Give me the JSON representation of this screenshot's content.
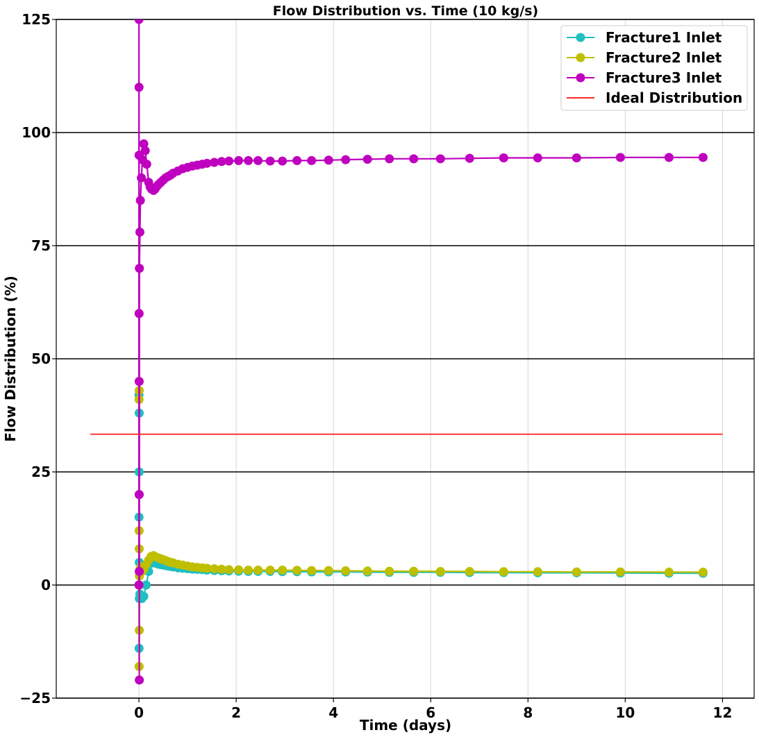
{
  "chart_data": {
    "type": "line",
    "title": "Flow Distribution vs. Time (10 kg/s)",
    "xlabel": "Time (days)",
    "ylabel": "Flow Distribution (%)",
    "xlim": [
      -1.7,
      12.65
    ],
    "ylim": [
      -25,
      125
    ],
    "xticks": [
      0,
      2,
      4,
      6,
      8,
      10,
      12
    ],
    "yticks": [
      -25,
      0,
      25,
      50,
      75,
      100,
      125
    ],
    "xtick_labels": [
      "0",
      "2",
      "4",
      "6",
      "8",
      "10",
      "12"
    ],
    "ytick_labels": [
      "−25",
      "0",
      "25",
      "50",
      "75",
      "100",
      "125"
    ],
    "grid": {
      "x": "light",
      "y": "dark"
    },
    "legend_position": "top-right",
    "series": [
      {
        "name": "Fracture1 Inlet",
        "color": "#1fbfbf",
        "marker": "circle",
        "x": [
          0,
          0.001,
          0.002,
          0.003,
          0.004,
          0.005,
          0.006,
          0.007,
          0.008,
          0.01,
          0.02,
          0.04,
          0.06,
          0.1,
          0.15,
          0.2,
          0.25,
          0.3,
          0.35,
          0.4,
          0.45,
          0.5,
          0.55,
          0.6,
          0.65,
          0.7,
          0.8,
          0.9,
          1.0,
          1.1,
          1.2,
          1.3,
          1.4,
          1.55,
          1.7,
          1.85,
          2.05,
          2.25,
          2.45,
          2.7,
          2.95,
          3.25,
          3.55,
          3.9,
          4.25,
          4.7,
          5.15,
          5.65,
          6.2,
          6.8,
          7.5,
          8.2,
          9.0,
          9.9,
          10.9,
          11.6
        ],
        "y": [
          0,
          42,
          15,
          -14,
          20,
          25,
          38,
          5,
          -3,
          0,
          -2,
          -3,
          -3,
          -2.5,
          0,
          3,
          4.8,
          5,
          4.8,
          4.6,
          4.5,
          4.4,
          4.3,
          4.2,
          4.1,
          4.0,
          3.8,
          3.7,
          3.6,
          3.5,
          3.45,
          3.4,
          3.3,
          3.2,
          3.15,
          3.1,
          3.05,
          3.0,
          3.0,
          3.0,
          2.95,
          2.95,
          2.9,
          2.9,
          2.9,
          2.85,
          2.8,
          2.8,
          2.8,
          2.75,
          2.75,
          2.7,
          2.7,
          2.65,
          2.6,
          2.6
        ]
      },
      {
        "name": "Fracture2 Inlet",
        "color": "#bfbf00",
        "marker": "circle",
        "x": [
          0,
          0.001,
          0.002,
          0.003,
          0.004,
          0.005,
          0.006,
          0.007,
          0.008,
          0.01,
          0.02,
          0.04,
          0.06,
          0.1,
          0.15,
          0.2,
          0.25,
          0.3,
          0.35,
          0.4,
          0.45,
          0.5,
          0.55,
          0.6,
          0.65,
          0.7,
          0.8,
          0.9,
          1.0,
          1.1,
          1.2,
          1.3,
          1.4,
          1.55,
          1.7,
          1.85,
          2.05,
          2.25,
          2.45,
          2.7,
          2.95,
          3.25,
          3.55,
          3.9,
          4.25,
          4.7,
          5.15,
          5.65,
          6.2,
          6.8,
          7.5,
          8.2,
          9.0,
          9.9,
          10.9,
          11.6
        ],
        "y": [
          0,
          60,
          41,
          20,
          -18,
          12,
          43,
          8,
          -10,
          2,
          3.5,
          4,
          3,
          3.5,
          4.5,
          5.5,
          6.3,
          6.5,
          6.2,
          6.0,
          5.8,
          5.6,
          5.4,
          5.2,
          5.0,
          4.9,
          4.6,
          4.4,
          4.2,
          4.0,
          3.9,
          3.8,
          3.7,
          3.6,
          3.5,
          3.4,
          3.35,
          3.3,
          3.3,
          3.3,
          3.3,
          3.25,
          3.2,
          3.2,
          3.15,
          3.1,
          3.05,
          3.05,
          3.0,
          3.0,
          2.95,
          2.95,
          2.9,
          2.9,
          2.85,
          2.85
        ]
      },
      {
        "name": "Fracture3 Inlet",
        "color": "#bf00bf",
        "marker": "circle",
        "x": [
          0,
          0.001,
          0.002,
          0.003,
          0.004,
          0.005,
          0.006,
          0.007,
          0.008,
          0.01,
          0.02,
          0.03,
          0.05,
          0.07,
          0.1,
          0.13,
          0.16,
          0.2,
          0.23,
          0.26,
          0.3,
          0.33,
          0.36,
          0.4,
          0.45,
          0.5,
          0.55,
          0.6,
          0.65,
          0.7,
          0.8,
          0.9,
          1.0,
          1.1,
          1.2,
          1.3,
          1.4,
          1.55,
          1.7,
          1.85,
          2.05,
          2.25,
          2.45,
          2.7,
          2.95,
          3.25,
          3.55,
          3.9,
          4.25,
          4.7,
          5.15,
          5.65,
          6.2,
          6.8,
          7.5,
          8.2,
          9.0,
          9.9,
          10.9,
          11.6
        ],
        "y": [
          0,
          125,
          110,
          95,
          60,
          45,
          20,
          3,
          -21,
          70,
          78,
          85,
          90,
          94,
          97.5,
          96,
          93,
          89,
          88,
          87.5,
          87.2,
          87.5,
          88,
          88.5,
          89,
          89.5,
          90,
          90.3,
          90.6,
          91,
          91.5,
          92,
          92.3,
          92.6,
          92.8,
          93,
          93.2,
          93.4,
          93.6,
          93.7,
          93.8,
          93.8,
          93.8,
          93.7,
          93.7,
          93.8,
          93.8,
          93.9,
          94.0,
          94.1,
          94.2,
          94.2,
          94.2,
          94.3,
          94.4,
          94.4,
          94.4,
          94.5,
          94.5,
          94.5
        ]
      },
      {
        "name": "Ideal Distribution",
        "color": "#ff2a2a",
        "marker": "none",
        "x": [
          -1,
          12
        ],
        "y": [
          33.33,
          33.33
        ]
      }
    ]
  }
}
